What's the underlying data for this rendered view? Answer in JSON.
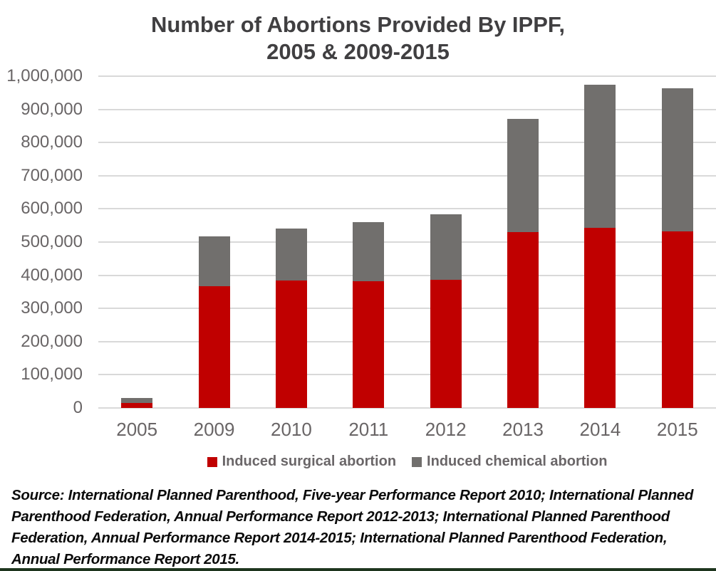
{
  "title": {
    "line1": "Number of Abortions Provided By IPPF,",
    "line2": "2005 & 2009-2015"
  },
  "source_lines": [
    "Source: International Planned Parenthood, Five-year Performance Report 2010; International Planned",
    "Parenthood Federation, Annual Performance Report 2012-2013; International Planned Parenthood",
    "Federation, Annual Performance Report 2014-2015; International Planned Parenthood Federation,",
    "Annual Performance Report 2015."
  ],
  "colors": {
    "surgical_red": "#C00000",
    "chemical_gray": "#716F6D",
    "gridline": "#D9D9D9",
    "title_text": "#403F41",
    "axis_text": "#696566",
    "legend_text": "#6A6668",
    "bottom_bar": "#1E351E"
  },
  "chart_data": {
    "type": "bar",
    "stacked": true,
    "title": "Number of Abortions Provided By IPPF, 2005 & 2009-2015",
    "categories": [
      "2005",
      "2009",
      "2010",
      "2011",
      "2012",
      "2013",
      "2014",
      "2015"
    ],
    "series": [
      {
        "name": "Induced surgical abortion",
        "color": "#C00000",
        "values": [
          16000,
          366000,
          385000,
          381000,
          386000,
          531000,
          544000,
          533000
        ]
      },
      {
        "name": "Induced chemical abortion",
        "color": "#716F6D",
        "values": [
          14000,
          152000,
          155000,
          179000,
          198000,
          341000,
          431000,
          430000
        ]
      }
    ],
    "totals": [
      30000,
      518000,
      540000,
      560000,
      584000,
      872000,
      975000,
      963000
    ],
    "xlabel": "",
    "ylabel": "",
    "ylim": [
      0,
      1000000
    ],
    "ytick_interval": 100000,
    "grid": true,
    "legend_position": "bottom"
  }
}
